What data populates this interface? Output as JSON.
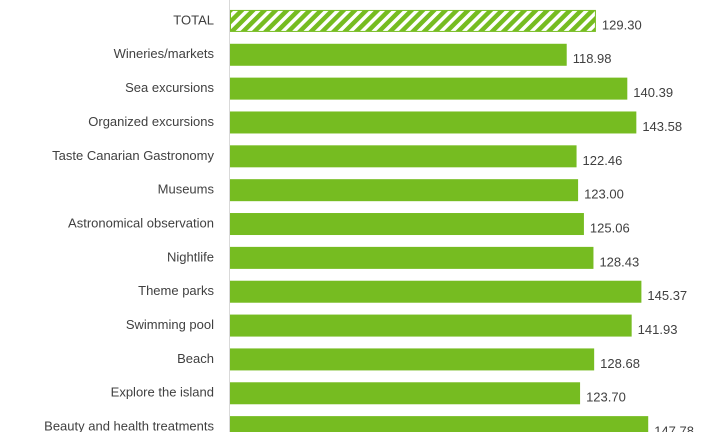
{
  "chart_data": {
    "type": "barh",
    "categories": [
      "TOTAL",
      "Wineries/markets",
      "Sea excursions",
      "Organized excursions",
      "Taste Canarian Gastronomy",
      "Museums",
      "Astronomical observation",
      "Nightlife",
      "Theme parks",
      "Swimming pool",
      "Beach",
      "Explore the island",
      "Beauty and health treatments"
    ],
    "values": [
      129.3,
      118.98,
      140.39,
      143.58,
      122.46,
      123.0,
      125.06,
      128.43,
      145.37,
      141.93,
      128.68,
      123.7,
      147.78
    ],
    "value_labels": [
      "129.30",
      "118.98",
      "140.39",
      "143.58",
      "122.46",
      "123.00",
      "125.06",
      "128.43",
      "145.37",
      "141.93",
      "128.68",
      "123.70",
      "147.78"
    ],
    "color": "#76bc21",
    "hatched": [
      0
    ],
    "xlim": [
      0,
      150
    ]
  }
}
